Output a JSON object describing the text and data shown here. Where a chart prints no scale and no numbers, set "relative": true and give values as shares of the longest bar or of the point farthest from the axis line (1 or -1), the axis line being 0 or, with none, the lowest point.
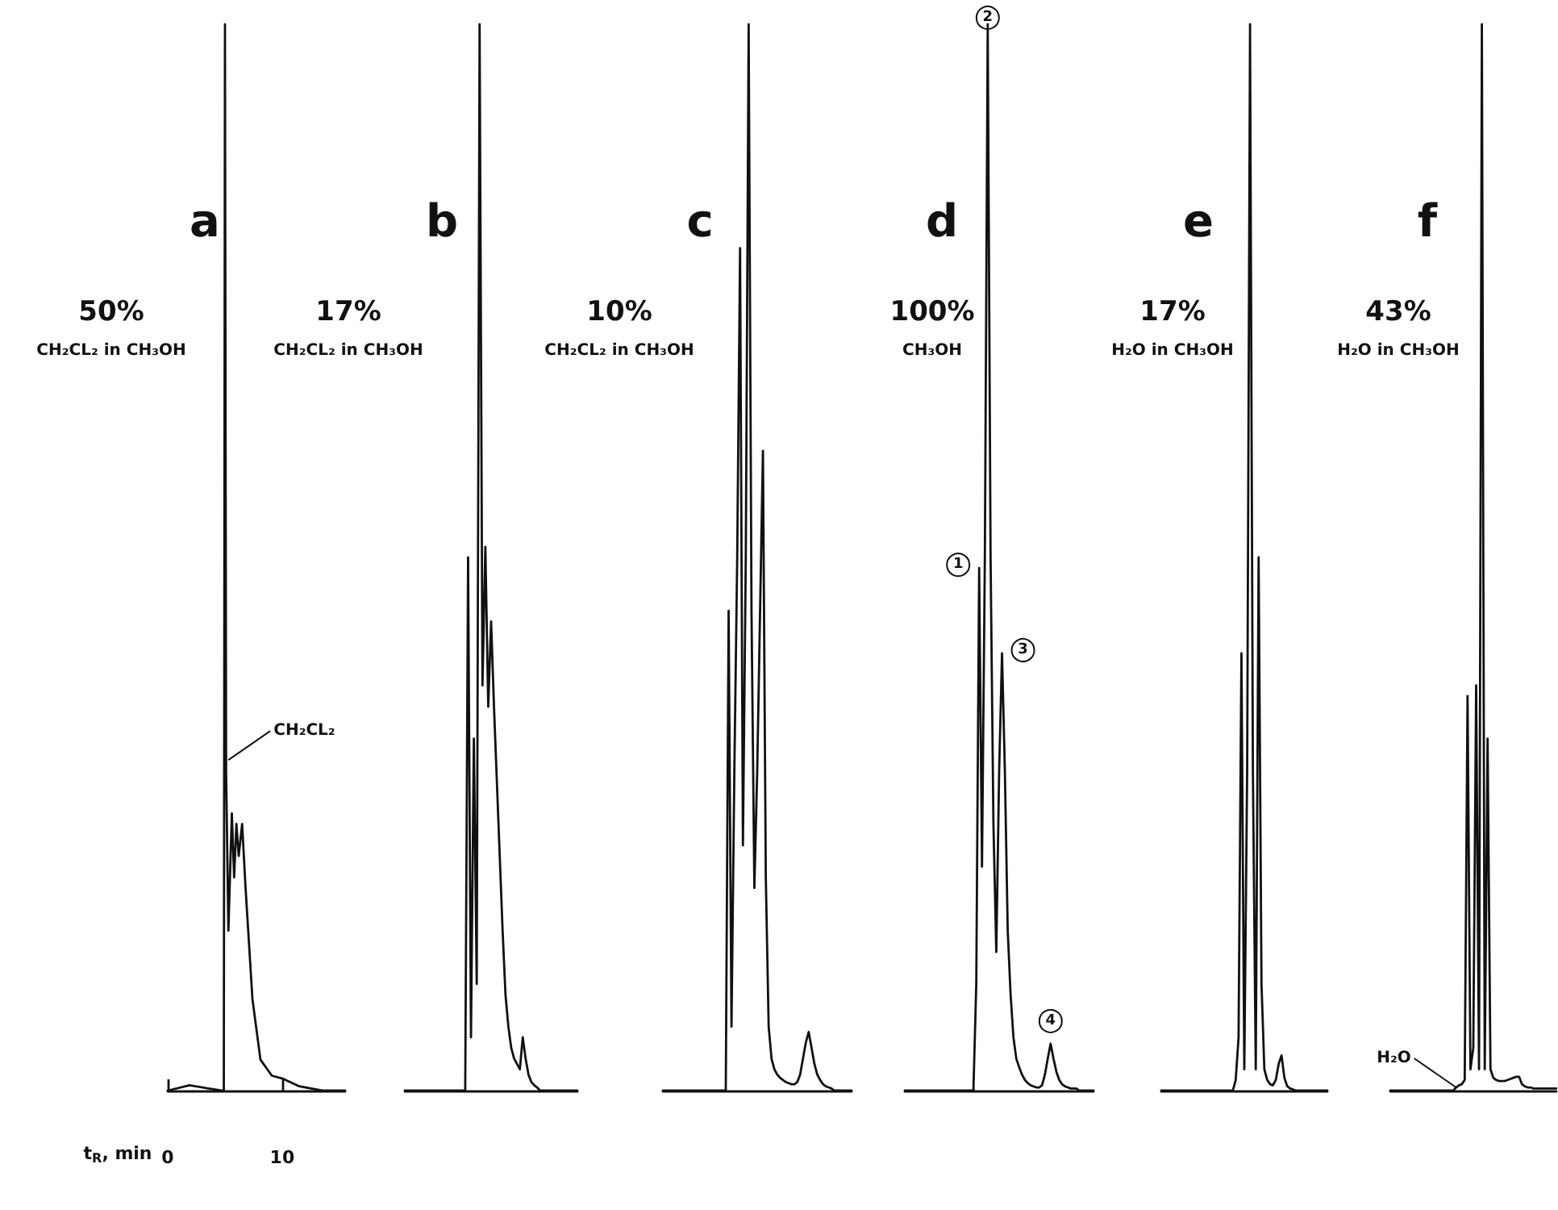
{
  "chart_data": [
    {
      "type": "line",
      "title": "a",
      "subtitle": "50%",
      "xlabel": "t$_{R}$, min",
      "relative": true,
      "color": "#111111",
      "xlim": [
        0,
        15.5
      ],
      "xticks": [
        0,
        10
      ],
      "tick_labels": "x",
      "annotations": [
        "CH₂CL₂ in CH₃OH",
        {
          "text": "CH₂CL₂",
          "x": 5.3,
          "y": 0.31
        }
      ],
      "x": [
        0,
        1.9,
        4.7,
        4.9,
        5.0,
        5.1,
        5.3,
        5.6,
        5.8,
        6.0,
        6.2,
        6.5,
        6.8,
        7.4,
        8.1,
        9.1,
        10.1,
        11.5,
        13.5,
        15.5
      ],
      "values": [
        0,
        0.005,
        0,
        0,
        1,
        0.3,
        0.15,
        0.26,
        0.2,
        0.25,
        0.22,
        0.25,
        0.19,
        0.086,
        0.029,
        0.014,
        0.011,
        0.004,
        0,
        0
      ]
    },
    {
      "type": "line",
      "title": "b",
      "subtitle": "17%",
      "relative": true,
      "color": "#111111",
      "tick_labels": false,
      "annotations": [
        "CH₂CL₂ in CH₃OH"
      ],
      "categories": [
        null,
        null,
        null,
        null,
        null,
        null,
        null,
        null,
        null,
        null,
        null,
        null,
        null,
        null,
        null,
        null,
        null,
        null,
        null,
        null,
        null,
        null,
        null,
        null,
        null,
        null,
        null,
        null,
        null,
        null,
        null,
        null,
        null,
        null,
        null,
        null,
        null,
        null,
        null,
        null,
        null,
        null,
        null,
        null,
        null,
        null,
        null,
        null,
        null,
        null,
        null,
        null,
        null,
        null,
        null,
        null,
        null,
        null,
        null,
        null,
        null
      ],
      "values": [
        0,
        0,
        0,
        0,
        0,
        0,
        0,
        0,
        0,
        0,
        0,
        0,
        0,
        0,
        0,
        0,
        0,
        0,
        0,
        0,
        0,
        0,
        0.5,
        0.05,
        0.33,
        0.1,
        1,
        0.38,
        0.51,
        0.36,
        0.44,
        0.36,
        0.29,
        0.22,
        0.15,
        0.09,
        0.06,
        0.04,
        0.03,
        0.025,
        0.02,
        0.05,
        0.03,
        0.015,
        0.008,
        0.005,
        0.003,
        0,
        0,
        0,
        0,
        0,
        0,
        0,
        0,
        0,
        0,
        0,
        0,
        0,
        0
      ]
    },
    {
      "type": "line",
      "title": "c",
      "subtitle": "10%",
      "relative": true,
      "color": "#111111",
      "tick_labels": false,
      "annotations": [
        "CH₂CL₂ in CH₃OH"
      ],
      "categories": [
        null,
        null,
        null,
        null,
        null,
        null,
        null,
        null,
        null,
        null,
        null,
        null,
        null,
        null,
        null,
        null,
        null,
        null,
        null,
        null,
        null,
        null,
        null,
        null,
        null,
        null,
        null,
        null,
        null,
        null,
        null,
        null,
        null,
        null,
        null,
        null,
        null,
        null,
        null,
        null,
        null,
        null,
        null,
        null,
        null,
        null,
        null,
        null,
        null,
        null,
        null,
        null,
        null,
        null,
        null,
        null,
        null,
        null,
        null,
        null,
        null,
        null,
        null,
        null,
        null,
        null,
        null
      ],
      "values": [
        0,
        0,
        0,
        0,
        0,
        0,
        0,
        0,
        0,
        0,
        0,
        0,
        0,
        0,
        0,
        0,
        0,
        0,
        0,
        0,
        0,
        0,
        0,
        0.45,
        0.06,
        0.3,
        0.5,
        0.79,
        0.23,
        0.5,
        1,
        0.45,
        0.19,
        0.3,
        0.45,
        0.6,
        0.2,
        0.06,
        0.03,
        0.02,
        0.015,
        0.012,
        0.01,
        0.008,
        0.007,
        0.006,
        0.006,
        0.008,
        0.015,
        0.03,
        0.045,
        0.055,
        0.04,
        0.025,
        0.015,
        0.01,
        0.006,
        0.004,
        0.003,
        0.002,
        0,
        0,
        0,
        0,
        0,
        0,
        0
      ]
    },
    {
      "type": "line",
      "title": "d",
      "subtitle": "100%",
      "relative": true,
      "color": "#111111",
      "tick_labels": false,
      "annotations": [
        "CH₃OH",
        {
          "text": "1",
          "y": 0.49
        },
        {
          "text": "2",
          "y": 1
        },
        {
          "text": "3",
          "y": 0.41
        },
        {
          "text": "4",
          "y": 0.044
        }
      ],
      "categories": [
        null,
        null,
        null,
        null,
        null,
        null,
        null,
        null,
        null,
        null,
        null,
        null,
        null,
        null,
        null,
        null,
        null,
        null,
        null,
        null,
        null,
        null,
        null,
        null,
        null,
        null,
        null,
        null,
        null,
        null,
        null,
        null,
        null,
        null,
        null,
        null,
        null,
        null,
        null,
        null,
        null,
        null,
        null,
        null,
        null,
        null,
        null,
        null,
        null,
        null,
        null,
        null,
        null,
        null,
        null,
        null,
        null,
        null,
        null,
        null,
        null,
        null,
        null,
        null,
        null,
        null,
        null
      ],
      "values": [
        0,
        0,
        0,
        0,
        0,
        0,
        0,
        0,
        0,
        0,
        0,
        0,
        0,
        0,
        0,
        0,
        0,
        0,
        0,
        0,
        0,
        0,
        0,
        0,
        0,
        0.1,
        0.49,
        0.21,
        0.5,
        1,
        0.5,
        0.25,
        0.13,
        0.3,
        0.41,
        0.3,
        0.15,
        0.09,
        0.05,
        0.03,
        0.022,
        0.015,
        0.01,
        0.007,
        0.005,
        0.004,
        0.003,
        0.003,
        0.005,
        0.015,
        0.03,
        0.044,
        0.03,
        0.018,
        0.01,
        0.006,
        0.004,
        0.003,
        0.002,
        0.002,
        0.002,
        0,
        0,
        0,
        0,
        0,
        0
      ]
    },
    {
      "type": "line",
      "title": "e",
      "subtitle": "17%",
      "relative": true,
      "color": "#111111",
      "tick_labels": false,
      "annotations": [
        "H₂O in CH₃OH"
      ],
      "categories": [
        null,
        null,
        null,
        null,
        null,
        null,
        null,
        null,
        null,
        null,
        null,
        null,
        null,
        null,
        null,
        null,
        null,
        null,
        null,
        null,
        null,
        null,
        null,
        null,
        null,
        null,
        null,
        null,
        null,
        null,
        null,
        null,
        null,
        null,
        null,
        null,
        null,
        null,
        null,
        null,
        null,
        null,
        null,
        null,
        null,
        null,
        null,
        null,
        null,
        null,
        null,
        null,
        null,
        null,
        null,
        null,
        null,
        null,
        null
      ],
      "values": [
        0,
        0,
        0,
        0,
        0,
        0,
        0,
        0,
        0,
        0,
        0,
        0,
        0,
        0,
        0,
        0,
        0,
        0,
        0,
        0,
        0,
        0,
        0,
        0,
        0,
        0,
        0.01,
        0.05,
        0.41,
        0.02,
        0.3,
        1,
        0.3,
        0.02,
        0.5,
        0.1,
        0.02,
        0.01,
        0.006,
        0.005,
        0.01,
        0.025,
        0.033,
        0.012,
        0.004,
        0.002,
        0.001,
        0,
        0,
        0,
        0,
        0,
        0,
        0,
        0,
        0,
        0,
        0,
        0
      ]
    },
    {
      "type": "line",
      "title": "f",
      "subtitle": "43%",
      "relative": true,
      "color": "#111111",
      "tick_labels": false,
      "annotations": [
        "H₂O in CH₃OH",
        {
          "text": "H₂O",
          "y": 0.003
        }
      ],
      "categories": [
        null,
        null,
        null,
        null,
        null,
        null,
        null,
        null,
        null,
        null,
        null,
        null,
        null,
        null,
        null,
        null,
        null,
        null,
        null,
        null,
        null,
        null,
        null,
        null,
        null,
        null,
        null,
        null,
        null,
        null,
        null,
        null,
        null,
        null,
        null,
        null,
        null,
        null,
        null,
        null,
        null,
        null,
        null,
        null,
        null,
        null,
        null,
        null,
        null,
        null,
        null,
        null,
        null,
        null,
        null,
        null,
        null,
        null,
        null
      ],
      "values": [
        0,
        0,
        0,
        0,
        0,
        0,
        0,
        0,
        0,
        0,
        0,
        0,
        0,
        0,
        0,
        0,
        0,
        0,
        0,
        0,
        0,
        0,
        0,
        0.003,
        0.005,
        0.006,
        0.01,
        0.37,
        0.02,
        0.04,
        0.38,
        0.02,
        1,
        0.02,
        0.33,
        0.02,
        0.012,
        0.01,
        0.009,
        0.009,
        0.009,
        0.01,
        0.011,
        0.012,
        0.013,
        0.013,
        0.006,
        0.004,
        0.003,
        0.003,
        0.002,
        0.002,
        0.002,
        0.002,
        0.002,
        0.002,
        0.002,
        0.002,
        0.002
      ]
    }
  ]
}
